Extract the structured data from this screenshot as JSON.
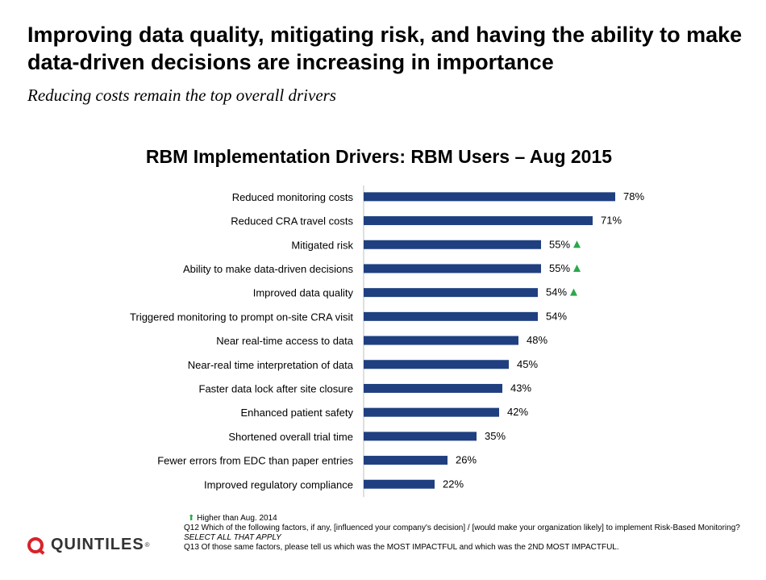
{
  "header": {
    "title": "Improving data quality, mitigating risk, and having the ability to make data-driven decisions are increasing in importance",
    "subtitle": "Reducing costs remain the top overall drivers"
  },
  "chart_data": {
    "type": "bar",
    "orientation": "horizontal",
    "title": "RBM Implementation Drivers: RBM Users – Aug 2015",
    "xlabel": "",
    "ylabel": "",
    "xlim": [
      0,
      100
    ],
    "unit": "%",
    "bar_color": "#1f3f80",
    "indicator_color": "#2aa84a",
    "categories": [
      "Reduced monitoring costs",
      "Reduced CRA travel costs",
      "Mitigated risk",
      "Ability to make data-driven decisions",
      "Improved data quality",
      "Triggered monitoring to prompt on-site CRA visit",
      "Near real-time access to data",
      "Near-real time interpretation of data",
      "Faster data lock after site closure",
      "Enhanced patient safety",
      "Shortened overall trial time",
      "Fewer errors from EDC than paper entries",
      "Improved regulatory compliance"
    ],
    "values": [
      78,
      71,
      55,
      55,
      54,
      54,
      48,
      45,
      43,
      42,
      35,
      26,
      22
    ],
    "higher_than_2014": [
      false,
      false,
      true,
      true,
      true,
      false,
      false,
      false,
      false,
      false,
      false,
      false,
      false
    ]
  },
  "footer": {
    "legend_arrow": "⬆",
    "legend_text": "Higher than Aug. 2014",
    "q12": "Q12 Which of the following factors, if any, [influenced your company's decision] / [would make your organization likely] to implement Risk-Based Monitoring?",
    "q12_instruction": "SELECT ALL THAT APPLY",
    "q13": "Q13 Of those same factors, please tell us which was the MOST IMPACTFUL and which was the 2ND MOST IMPACTFUL."
  },
  "logo": {
    "text": "QUINTILES",
    "tm": "®",
    "color": "#d8232a"
  }
}
